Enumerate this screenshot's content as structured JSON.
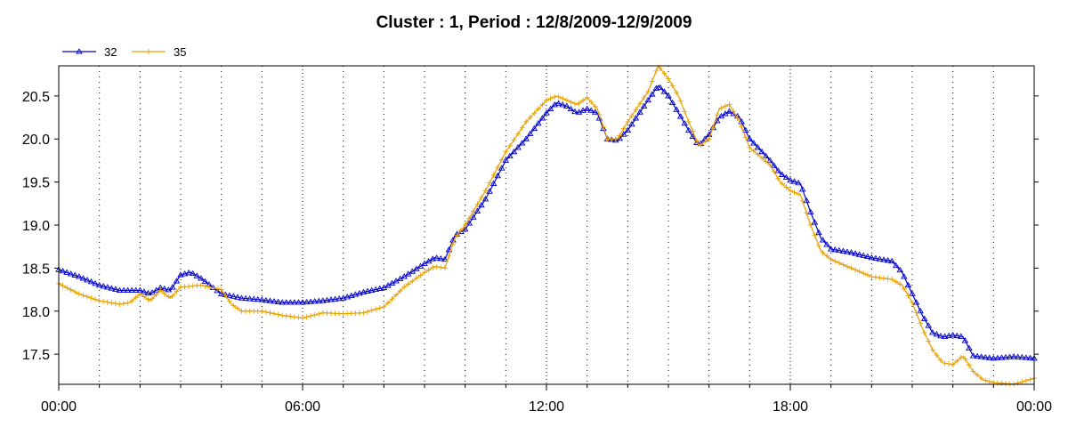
{
  "chart_data": {
    "type": "line",
    "title": "Cluster : 1, Period : 12/8/2009-12/9/2009",
    "xlabel": "",
    "ylabel": "",
    "xlim": [
      0,
      24
    ],
    "ylim": [
      17.15,
      20.85
    ],
    "x_ticks": [
      {
        "value": 0,
        "label": "00:00"
      },
      {
        "value": 6,
        "label": "06:00"
      },
      {
        "value": 12,
        "label": "12:00"
      },
      {
        "value": 18,
        "label": "18:00"
      },
      {
        "value": 24,
        "label": "00:00"
      }
    ],
    "y_ticks": [
      {
        "value": 17.5,
        "label": "17.5"
      },
      {
        "value": 18.0,
        "label": "18.0"
      },
      {
        "value": 18.5,
        "label": "18.5"
      },
      {
        "value": 19.0,
        "label": "19.0"
      },
      {
        "value": 19.5,
        "label": "19.5"
      },
      {
        "value": 20.0,
        "label": "20.0"
      },
      {
        "value": 20.5,
        "label": "20.5"
      }
    ],
    "x_minor_step": 1,
    "grid": true,
    "legend_position": "top-left",
    "series": [
      {
        "name": "32",
        "color": "#0000cc",
        "marker": "triangle",
        "points": [
          [
            0,
            18.48
          ],
          [
            0.5,
            18.4
          ],
          [
            1,
            18.3
          ],
          [
            1.5,
            18.24
          ],
          [
            2,
            18.24
          ],
          [
            2.25,
            18.2
          ],
          [
            2.5,
            18.27
          ],
          [
            2.75,
            18.24
          ],
          [
            3,
            18.42
          ],
          [
            3.25,
            18.45
          ],
          [
            3.5,
            18.38
          ],
          [
            4,
            18.2
          ],
          [
            4.5,
            18.15
          ],
          [
            5,
            18.13
          ],
          [
            5.5,
            18.1
          ],
          [
            6,
            18.1
          ],
          [
            6.5,
            18.12
          ],
          [
            7,
            18.15
          ],
          [
            7.5,
            18.22
          ],
          [
            8,
            18.27
          ],
          [
            8.5,
            18.4
          ],
          [
            9,
            18.55
          ],
          [
            9.25,
            18.62
          ],
          [
            9.5,
            18.6
          ],
          [
            9.75,
            18.88
          ],
          [
            10,
            18.95
          ],
          [
            10.5,
            19.3
          ],
          [
            11,
            19.75
          ],
          [
            11.5,
            20.0
          ],
          [
            12,
            20.3
          ],
          [
            12.25,
            20.42
          ],
          [
            12.5,
            20.38
          ],
          [
            12.75,
            20.3
          ],
          [
            13,
            20.35
          ],
          [
            13.25,
            20.3
          ],
          [
            13.5,
            20.0
          ],
          [
            13.75,
            19.98
          ],
          [
            14,
            20.1
          ],
          [
            14.5,
            20.45
          ],
          [
            14.75,
            20.62
          ],
          [
            15,
            20.5
          ],
          [
            15.25,
            20.3
          ],
          [
            15.5,
            20.1
          ],
          [
            15.75,
            19.92
          ],
          [
            16,
            20.05
          ],
          [
            16.25,
            20.25
          ],
          [
            16.5,
            20.32
          ],
          [
            16.75,
            20.25
          ],
          [
            17,
            20.0
          ],
          [
            17.5,
            19.75
          ],
          [
            17.75,
            19.6
          ],
          [
            18,
            19.52
          ],
          [
            18.25,
            19.48
          ],
          [
            18.5,
            19.15
          ],
          [
            18.75,
            18.85
          ],
          [
            19,
            18.72
          ],
          [
            19.5,
            18.68
          ],
          [
            20,
            18.62
          ],
          [
            20.5,
            18.58
          ],
          [
            20.75,
            18.45
          ],
          [
            21,
            18.2
          ],
          [
            21.25,
            17.95
          ],
          [
            21.5,
            17.75
          ],
          [
            21.75,
            17.7
          ],
          [
            22,
            17.72
          ],
          [
            22.25,
            17.7
          ],
          [
            22.5,
            17.48
          ],
          [
            23,
            17.45
          ],
          [
            23.5,
            17.47
          ],
          [
            24,
            17.45
          ]
        ]
      },
      {
        "name": "35",
        "color": "#e8a000",
        "marker": "plus",
        "points": [
          [
            0,
            18.32
          ],
          [
            0.5,
            18.2
          ],
          [
            1,
            18.12
          ],
          [
            1.5,
            18.08
          ],
          [
            1.75,
            18.1
          ],
          [
            2,
            18.2
          ],
          [
            2.25,
            18.12
          ],
          [
            2.5,
            18.24
          ],
          [
            2.75,
            18.15
          ],
          [
            3,
            18.28
          ],
          [
            3.5,
            18.3
          ],
          [
            4,
            18.25
          ],
          [
            4.25,
            18.08
          ],
          [
            4.5,
            18.0
          ],
          [
            5,
            18.0
          ],
          [
            5.5,
            17.95
          ],
          [
            6,
            17.92
          ],
          [
            6.25,
            17.95
          ],
          [
            6.5,
            17.98
          ],
          [
            7,
            17.97
          ],
          [
            7.5,
            17.98
          ],
          [
            8,
            18.05
          ],
          [
            8.5,
            18.28
          ],
          [
            9,
            18.45
          ],
          [
            9.25,
            18.52
          ],
          [
            9.5,
            18.5
          ],
          [
            9.75,
            18.85
          ],
          [
            10,
            19.0
          ],
          [
            10.5,
            19.4
          ],
          [
            11,
            19.85
          ],
          [
            11.5,
            20.2
          ],
          [
            12,
            20.45
          ],
          [
            12.25,
            20.5
          ],
          [
            12.5,
            20.45
          ],
          [
            12.75,
            20.4
          ],
          [
            13,
            20.48
          ],
          [
            13.25,
            20.35
          ],
          [
            13.5,
            20.0
          ],
          [
            13.75,
            20.0
          ],
          [
            14,
            20.2
          ],
          [
            14.5,
            20.55
          ],
          [
            14.75,
            20.85
          ],
          [
            15,
            20.7
          ],
          [
            15.25,
            20.5
          ],
          [
            15.5,
            20.2
          ],
          [
            15.75,
            19.92
          ],
          [
            16,
            20.0
          ],
          [
            16.25,
            20.35
          ],
          [
            16.5,
            20.4
          ],
          [
            16.75,
            20.2
          ],
          [
            17,
            19.9
          ],
          [
            17.5,
            19.7
          ],
          [
            17.75,
            19.5
          ],
          [
            18,
            19.4
          ],
          [
            18.25,
            19.35
          ],
          [
            18.5,
            19.0
          ],
          [
            18.75,
            18.7
          ],
          [
            19,
            18.6
          ],
          [
            19.5,
            18.5
          ],
          [
            20,
            18.4
          ],
          [
            20.5,
            18.37
          ],
          [
            20.75,
            18.3
          ],
          [
            21,
            18.1
          ],
          [
            21.25,
            17.8
          ],
          [
            21.5,
            17.55
          ],
          [
            21.75,
            17.4
          ],
          [
            22,
            17.38
          ],
          [
            22.25,
            17.48
          ],
          [
            22.5,
            17.3
          ],
          [
            22.75,
            17.2
          ],
          [
            23,
            17.17
          ],
          [
            23.5,
            17.15
          ],
          [
            24,
            17.22
          ]
        ]
      }
    ]
  }
}
